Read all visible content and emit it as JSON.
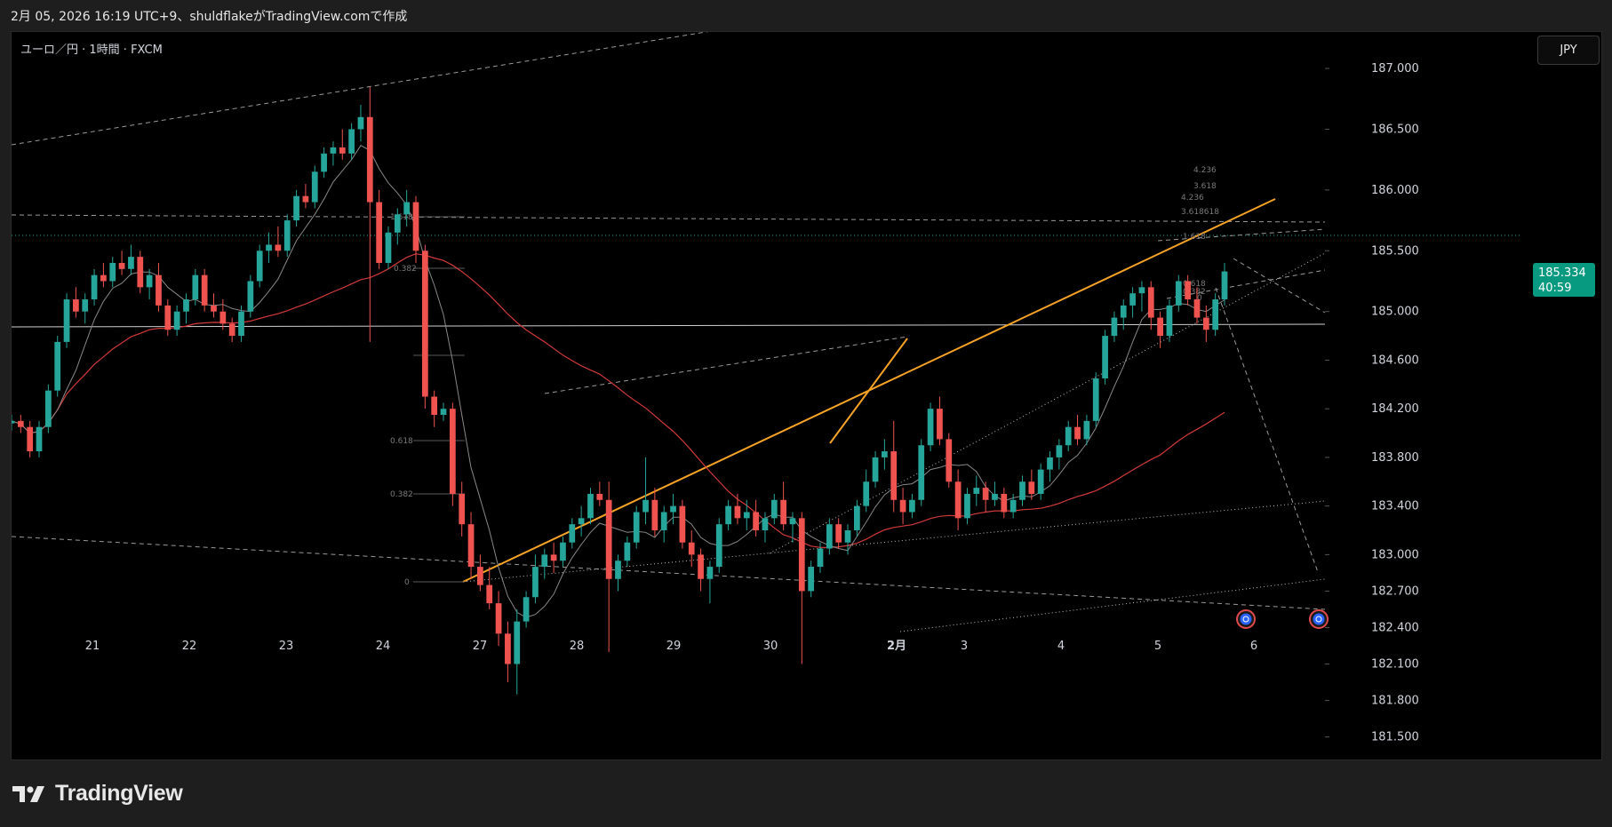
{
  "caption": "2月 05, 2026 16:19 UTC+9、shuldflakeがTradingView.comで作成",
  "symbol_label": "ユーロ／円 · 1時間 · FXCM",
  "currency_button": "JPY",
  "last_price": "185.334",
  "countdown": "40:59",
  "brand": "TradingView",
  "colors": {
    "up": "#26a69a",
    "down": "#ef5350",
    "orange_trendline": "#f7a325",
    "ma_long": "#d23a3a",
    "ma_short": "#888888",
    "price_tag": "#089981",
    "event_icon": "#2962ff"
  },
  "chart_data": {
    "type": "candlestick",
    "ylim": [
      181.3,
      187.3
    ],
    "y_ticks": [
      "187.000",
      "186.500",
      "186.000",
      "185.500",
      "185.000",
      "184.600",
      "184.200",
      "183.800",
      "183.400",
      "183.000",
      "182.700",
      "182.400",
      "182.100",
      "181.800",
      "181.500"
    ],
    "x_ticks": [
      "21",
      "22",
      "23",
      "24",
      "27",
      "28",
      "29",
      "30",
      "2月",
      "3",
      "4",
      "5",
      "6"
    ],
    "candles": [
      {
        "o": 184.08,
        "h": 184.15,
        "l": 184.02,
        "c": 184.1
      },
      {
        "o": 184.1,
        "h": 184.15,
        "l": 184.0,
        "c": 184.05
      },
      {
        "o": 184.05,
        "h": 184.1,
        "l": 183.8,
        "c": 183.85
      },
      {
        "o": 183.85,
        "h": 184.1,
        "l": 183.8,
        "c": 184.05
      },
      {
        "o": 184.05,
        "h": 184.4,
        "l": 184.0,
        "c": 184.35
      },
      {
        "o": 184.35,
        "h": 184.8,
        "l": 184.3,
        "c": 184.75
      },
      {
        "o": 184.75,
        "h": 185.15,
        "l": 184.7,
        "c": 185.1
      },
      {
        "o": 185.1,
        "h": 185.2,
        "l": 184.95,
        "c": 185.0
      },
      {
        "o": 185.0,
        "h": 185.15,
        "l": 184.9,
        "c": 185.1
      },
      {
        "o": 185.1,
        "h": 185.35,
        "l": 185.05,
        "c": 185.3
      },
      {
        "o": 185.3,
        "h": 185.4,
        "l": 185.2,
        "c": 185.25
      },
      {
        "o": 185.25,
        "h": 185.45,
        "l": 185.2,
        "c": 185.4
      },
      {
        "o": 185.4,
        "h": 185.5,
        "l": 185.3,
        "c": 185.35
      },
      {
        "o": 185.35,
        "h": 185.55,
        "l": 185.3,
        "c": 185.45
      },
      {
        "o": 185.45,
        "h": 185.5,
        "l": 185.15,
        "c": 185.2
      },
      {
        "o": 185.2,
        "h": 185.35,
        "l": 185.1,
        "c": 185.3
      },
      {
        "o": 185.3,
        "h": 185.4,
        "l": 185.0,
        "c": 185.05
      },
      {
        "o": 185.05,
        "h": 185.1,
        "l": 184.8,
        "c": 184.85
      },
      {
        "o": 184.85,
        "h": 185.05,
        "l": 184.8,
        "c": 185.0
      },
      {
        "o": 185.0,
        "h": 185.15,
        "l": 184.9,
        "c": 185.1
      },
      {
        "o": 185.1,
        "h": 185.35,
        "l": 185.05,
        "c": 185.3
      },
      {
        "o": 185.3,
        "h": 185.35,
        "l": 185.0,
        "c": 185.05
      },
      {
        "o": 185.05,
        "h": 185.15,
        "l": 184.95,
        "c": 185.0
      },
      {
        "o": 185.0,
        "h": 185.1,
        "l": 184.85,
        "c": 184.9
      },
      {
        "o": 184.9,
        "h": 184.95,
        "l": 184.75,
        "c": 184.8
      },
      {
        "o": 184.8,
        "h": 185.05,
        "l": 184.75,
        "c": 185.0
      },
      {
        "o": 185.0,
        "h": 185.3,
        "l": 184.95,
        "c": 185.25
      },
      {
        "o": 185.25,
        "h": 185.55,
        "l": 185.2,
        "c": 185.5
      },
      {
        "o": 185.5,
        "h": 185.65,
        "l": 185.4,
        "c": 185.55
      },
      {
        "o": 185.55,
        "h": 185.7,
        "l": 185.45,
        "c": 185.5
      },
      {
        "o": 185.5,
        "h": 185.8,
        "l": 185.45,
        "c": 185.75
      },
      {
        "o": 185.75,
        "h": 186.0,
        "l": 185.7,
        "c": 185.95
      },
      {
        "o": 185.95,
        "h": 186.05,
        "l": 185.85,
        "c": 185.9
      },
      {
        "o": 185.9,
        "h": 186.2,
        "l": 185.85,
        "c": 186.15
      },
      {
        "o": 186.15,
        "h": 186.35,
        "l": 186.1,
        "c": 186.3
      },
      {
        "o": 186.3,
        "h": 186.4,
        "l": 186.2,
        "c": 186.35
      },
      {
        "o": 186.35,
        "h": 186.5,
        "l": 186.25,
        "c": 186.3
      },
      {
        "o": 186.3,
        "h": 186.55,
        "l": 186.25,
        "c": 186.5
      },
      {
        "o": 186.5,
        "h": 186.7,
        "l": 186.4,
        "c": 186.6
      },
      {
        "o": 186.6,
        "h": 186.85,
        "l": 184.75,
        "c": 185.9
      },
      {
        "o": 185.9,
        "h": 186.0,
        "l": 185.35,
        "c": 185.4
      },
      {
        "o": 185.4,
        "h": 185.7,
        "l": 185.35,
        "c": 185.65
      },
      {
        "o": 185.65,
        "h": 185.85,
        "l": 185.55,
        "c": 185.8
      },
      {
        "o": 185.8,
        "h": 186.0,
        "l": 185.7,
        "c": 185.9
      },
      {
        "o": 185.9,
        "h": 185.95,
        "l": 185.4,
        "c": 185.5
      },
      {
        "o": 185.5,
        "h": 185.55,
        "l": 184.2,
        "c": 184.3
      },
      {
        "o": 184.3,
        "h": 184.35,
        "l": 184.05,
        "c": 184.15
      },
      {
        "o": 184.15,
        "h": 184.25,
        "l": 184.1,
        "c": 184.2
      },
      {
        "o": 184.2,
        "h": 184.25,
        "l": 183.4,
        "c": 183.5
      },
      {
        "o": 183.5,
        "h": 183.6,
        "l": 183.15,
        "c": 183.25
      },
      {
        "o": 183.25,
        "h": 183.35,
        "l": 182.8,
        "c": 182.9
      },
      {
        "o": 182.9,
        "h": 183.0,
        "l": 182.7,
        "c": 182.75
      },
      {
        "o": 182.75,
        "h": 182.9,
        "l": 182.55,
        "c": 182.6
      },
      {
        "o": 182.6,
        "h": 182.7,
        "l": 182.25,
        "c": 182.35
      },
      {
        "o": 182.35,
        "h": 182.45,
        "l": 181.95,
        "c": 182.1
      },
      {
        "o": 182.1,
        "h": 182.55,
        "l": 181.85,
        "c": 182.45
      },
      {
        "o": 182.45,
        "h": 182.7,
        "l": 182.4,
        "c": 182.65
      },
      {
        "o": 182.65,
        "h": 183.0,
        "l": 182.6,
        "c": 182.9
      },
      {
        "o": 182.9,
        "h": 183.05,
        "l": 182.8,
        "c": 183.0
      },
      {
        "o": 183.0,
        "h": 183.1,
        "l": 182.85,
        "c": 182.95
      },
      {
        "o": 182.95,
        "h": 183.15,
        "l": 182.9,
        "c": 183.1
      },
      {
        "o": 183.1,
        "h": 183.3,
        "l": 183.05,
        "c": 183.25
      },
      {
        "o": 183.25,
        "h": 183.4,
        "l": 183.15,
        "c": 183.3
      },
      {
        "o": 183.3,
        "h": 183.55,
        "l": 183.25,
        "c": 183.5
      },
      {
        "o": 183.5,
        "h": 183.6,
        "l": 183.4,
        "c": 183.45
      },
      {
        "o": 183.45,
        "h": 183.6,
        "l": 182.2,
        "c": 182.8
      },
      {
        "o": 182.8,
        "h": 183.0,
        "l": 182.7,
        "c": 182.95
      },
      {
        "o": 182.95,
        "h": 183.15,
        "l": 182.9,
        "c": 183.1
      },
      {
        "o": 183.1,
        "h": 183.4,
        "l": 183.05,
        "c": 183.35
      },
      {
        "o": 183.35,
        "h": 183.8,
        "l": 183.25,
        "c": 183.45
      },
      {
        "o": 183.45,
        "h": 183.55,
        "l": 183.15,
        "c": 183.2
      },
      {
        "o": 183.2,
        "h": 183.4,
        "l": 183.1,
        "c": 183.35
      },
      {
        "o": 183.35,
        "h": 183.5,
        "l": 183.25,
        "c": 183.4
      },
      {
        "o": 183.4,
        "h": 183.45,
        "l": 183.05,
        "c": 183.1
      },
      {
        "o": 183.1,
        "h": 183.2,
        "l": 182.9,
        "c": 183.0
      },
      {
        "o": 183.0,
        "h": 183.05,
        "l": 182.7,
        "c": 182.8
      },
      {
        "o": 182.8,
        "h": 182.95,
        "l": 182.6,
        "c": 182.9
      },
      {
        "o": 182.9,
        "h": 183.3,
        "l": 182.85,
        "c": 183.25
      },
      {
        "o": 183.25,
        "h": 183.45,
        "l": 183.2,
        "c": 183.4
      },
      {
        "o": 183.4,
        "h": 183.5,
        "l": 183.25,
        "c": 183.3
      },
      {
        "o": 183.3,
        "h": 183.45,
        "l": 183.2,
        "c": 183.35
      },
      {
        "o": 183.35,
        "h": 183.45,
        "l": 183.15,
        "c": 183.2
      },
      {
        "o": 183.2,
        "h": 183.35,
        "l": 183.1,
        "c": 183.3
      },
      {
        "o": 183.3,
        "h": 183.5,
        "l": 183.25,
        "c": 183.45
      },
      {
        "o": 183.45,
        "h": 183.6,
        "l": 183.2,
        "c": 183.25
      },
      {
        "o": 183.25,
        "h": 183.35,
        "l": 183.1,
        "c": 183.3
      },
      {
        "o": 183.3,
        "h": 183.35,
        "l": 182.1,
        "c": 182.7
      },
      {
        "o": 182.7,
        "h": 182.95,
        "l": 182.65,
        "c": 182.9
      },
      {
        "o": 182.9,
        "h": 183.1,
        "l": 182.85,
        "c": 183.05
      },
      {
        "o": 183.05,
        "h": 183.3,
        "l": 183.0,
        "c": 183.25
      },
      {
        "o": 183.25,
        "h": 183.3,
        "l": 183.05,
        "c": 183.1
      },
      {
        "o": 183.1,
        "h": 183.25,
        "l": 183.0,
        "c": 183.2
      },
      {
        "o": 183.2,
        "h": 183.45,
        "l": 183.15,
        "c": 183.4
      },
      {
        "o": 183.4,
        "h": 183.7,
        "l": 183.35,
        "c": 183.6
      },
      {
        "o": 183.6,
        "h": 183.85,
        "l": 183.55,
        "c": 183.8
      },
      {
        "o": 183.8,
        "h": 183.95,
        "l": 183.7,
        "c": 183.85
      },
      {
        "o": 183.85,
        "h": 184.1,
        "l": 183.35,
        "c": 183.45
      },
      {
        "o": 183.45,
        "h": 183.55,
        "l": 183.25,
        "c": 183.35
      },
      {
        "o": 183.35,
        "h": 183.5,
        "l": 183.3,
        "c": 183.45
      },
      {
        "o": 183.45,
        "h": 183.95,
        "l": 183.4,
        "c": 183.9
      },
      {
        "o": 183.9,
        "h": 184.25,
        "l": 183.85,
        "c": 184.2
      },
      {
        "o": 184.2,
        "h": 184.3,
        "l": 183.9,
        "c": 183.95
      },
      {
        "o": 183.95,
        "h": 184.0,
        "l": 183.55,
        "c": 183.6
      },
      {
        "o": 183.6,
        "h": 183.7,
        "l": 183.2,
        "c": 183.3
      },
      {
        "o": 183.3,
        "h": 183.55,
        "l": 183.25,
        "c": 183.5
      },
      {
        "o": 183.5,
        "h": 183.65,
        "l": 183.4,
        "c": 183.55
      },
      {
        "o": 183.55,
        "h": 183.6,
        "l": 183.35,
        "c": 183.45
      },
      {
        "o": 183.45,
        "h": 183.6,
        "l": 183.4,
        "c": 183.5
      },
      {
        "o": 183.5,
        "h": 183.55,
        "l": 183.3,
        "c": 183.35
      },
      {
        "o": 183.35,
        "h": 183.5,
        "l": 183.3,
        "c": 183.45
      },
      {
        "o": 183.45,
        "h": 183.65,
        "l": 183.4,
        "c": 183.6
      },
      {
        "o": 183.6,
        "h": 183.7,
        "l": 183.45,
        "c": 183.5
      },
      {
        "o": 183.5,
        "h": 183.75,
        "l": 183.45,
        "c": 183.7
      },
      {
        "o": 183.7,
        "h": 183.85,
        "l": 183.6,
        "c": 183.8
      },
      {
        "o": 183.8,
        "h": 183.95,
        "l": 183.7,
        "c": 183.9
      },
      {
        "o": 183.9,
        "h": 184.1,
        "l": 183.85,
        "c": 184.05
      },
      {
        "o": 184.05,
        "h": 184.15,
        "l": 183.9,
        "c": 183.95
      },
      {
        "o": 183.95,
        "h": 184.15,
        "l": 183.9,
        "c": 184.1
      },
      {
        "o": 184.1,
        "h": 184.5,
        "l": 184.05,
        "c": 184.45
      },
      {
        "o": 184.45,
        "h": 184.85,
        "l": 184.4,
        "c": 184.8
      },
      {
        "o": 184.8,
        "h": 185.0,
        "l": 184.75,
        "c": 184.95
      },
      {
        "o": 184.95,
        "h": 185.1,
        "l": 184.85,
        "c": 185.05
      },
      {
        "o": 185.05,
        "h": 185.2,
        "l": 184.95,
        "c": 185.15
      },
      {
        "o": 185.15,
        "h": 185.25,
        "l": 185.0,
        "c": 185.2
      },
      {
        "o": 185.2,
        "h": 185.25,
        "l": 184.85,
        "c": 184.95
      },
      {
        "o": 184.95,
        "h": 185.0,
        "l": 184.7,
        "c": 184.8
      },
      {
        "o": 184.8,
        "h": 185.1,
        "l": 184.75,
        "c": 185.05
      },
      {
        "o": 185.05,
        "h": 185.3,
        "l": 185.0,
        "c": 185.25
      },
      {
        "o": 185.25,
        "h": 185.3,
        "l": 185.05,
        "c": 185.1
      },
      {
        "o": 185.1,
        "h": 185.2,
        "l": 184.9,
        "c": 184.95
      },
      {
        "o": 184.95,
        "h": 185.05,
        "l": 184.75,
        "c": 184.85
      },
      {
        "o": 184.85,
        "h": 185.15,
        "l": 184.8,
        "c": 185.1
      },
      {
        "o": 185.1,
        "h": 185.4,
        "l": 185.05,
        "c": 185.33
      }
    ]
  }
}
